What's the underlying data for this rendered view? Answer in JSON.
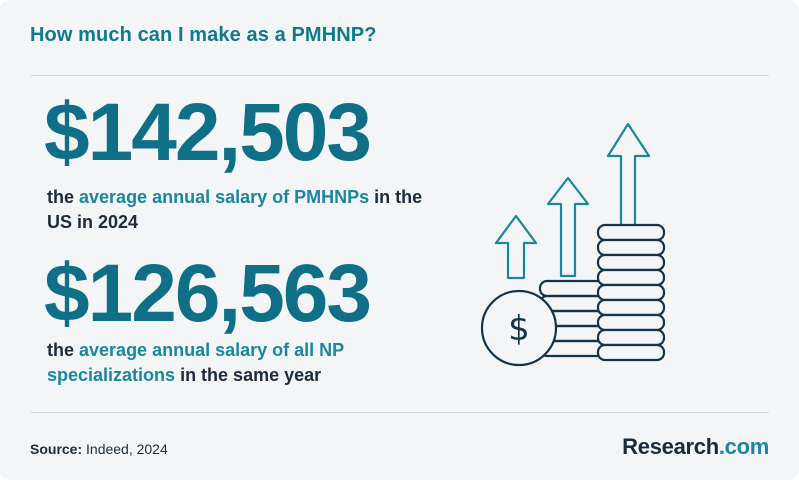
{
  "header": {
    "title": "How much can I make as a PMHNP?"
  },
  "stats": [
    {
      "value": "$142,503",
      "prefix": "the ",
      "highlight": "average annual salary of PMHNPs",
      "suffix": " in the US in 2024"
    },
    {
      "value": "$126,563",
      "prefix": "the ",
      "highlight": "average annual salary of all NP specializations",
      "suffix": " in the same year"
    }
  ],
  "footer": {
    "source_label": "Source:",
    "source_text": " Indeed, 2024",
    "brand_name": "Research",
    "brand_domain": ".com"
  },
  "illustration": {
    "icon": "money-growth-icon",
    "coin_symbol": "$"
  },
  "colors": {
    "accent": "#0f6f86",
    "highlight": "#1a86a0",
    "text": "#1d2b3a",
    "background": "#f3f5f7"
  }
}
